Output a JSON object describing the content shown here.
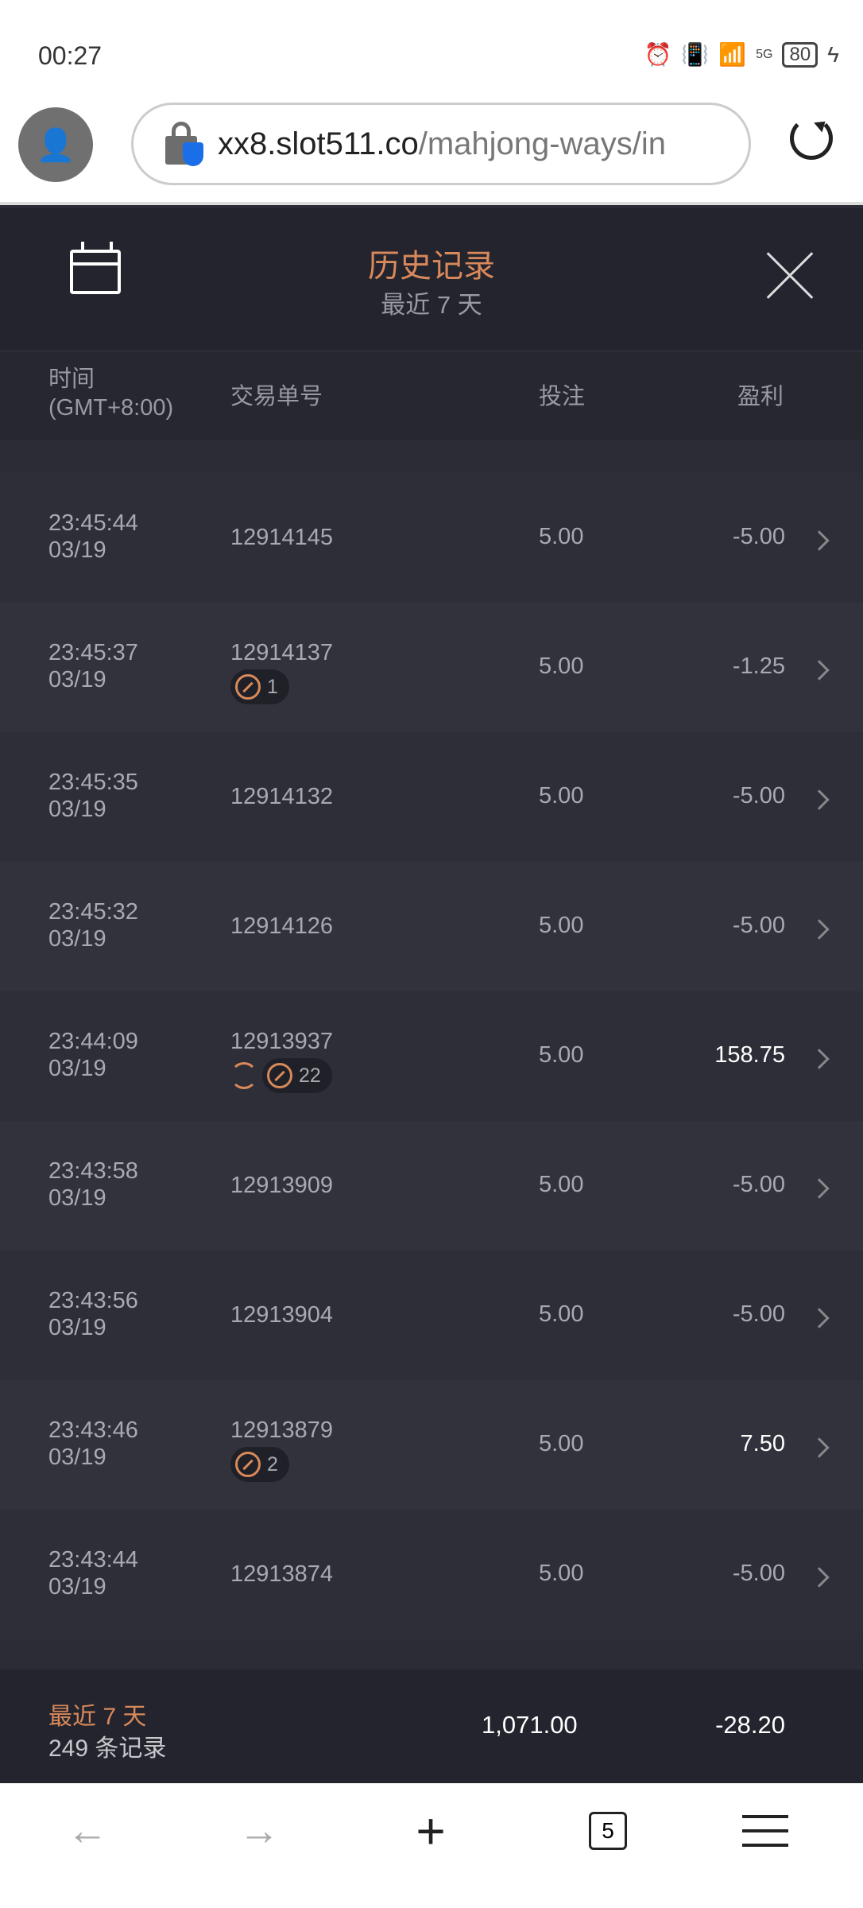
{
  "status_bar": {
    "time": "00:27",
    "network": "5G",
    "battery": "80"
  },
  "browser": {
    "url_host": "xx8.slot511.co",
    "url_path": "/mahjong-ways/in",
    "tab_count": "5"
  },
  "header": {
    "title": "历史记录",
    "subtitle": "最近 7 天"
  },
  "columns": {
    "time": "时间",
    "timezone": "(GMT+8:00)",
    "order_id": "交易单号",
    "bet": "投注",
    "profit": "盈利"
  },
  "rows": [
    {
      "time": "23:45:44",
      "date": "03/19",
      "id": "12914145",
      "bet": "5.00",
      "profit": "-5.00"
    },
    {
      "time": "23:45:37",
      "date": "03/19",
      "id": "12914137",
      "free_spins": "1",
      "bet": "5.00",
      "profit": "-1.25"
    },
    {
      "time": "23:45:35",
      "date": "03/19",
      "id": "12914132",
      "bet": "5.00",
      "profit": "-5.00"
    },
    {
      "time": "23:45:32",
      "date": "03/19",
      "id": "12914126",
      "bet": "5.00",
      "profit": "-5.00"
    },
    {
      "time": "23:44:09",
      "date": "03/19",
      "id": "12913937",
      "respin": true,
      "free_spins": "22",
      "bet": "5.00",
      "profit": "158.75"
    },
    {
      "time": "23:43:58",
      "date": "03/19",
      "id": "12913909",
      "bet": "5.00",
      "profit": "-5.00"
    },
    {
      "time": "23:43:56",
      "date": "03/19",
      "id": "12913904",
      "bet": "5.00",
      "profit": "-5.00"
    },
    {
      "time": "23:43:46",
      "date": "03/19",
      "id": "12913879",
      "free_spins": "2",
      "bet": "5.00",
      "profit": "7.50"
    },
    {
      "time": "23:43:44",
      "date": "03/19",
      "id": "12913874",
      "bet": "5.00",
      "profit": "-5.00"
    }
  ],
  "footer": {
    "period": "最近 7 天",
    "count": "249 条记录",
    "total_bet": "1,071.00",
    "total_profit": "-28.20"
  },
  "colors": {
    "accent": "#d9895a",
    "header_bg": "#23242e",
    "row_bg": "#2d2e38"
  }
}
